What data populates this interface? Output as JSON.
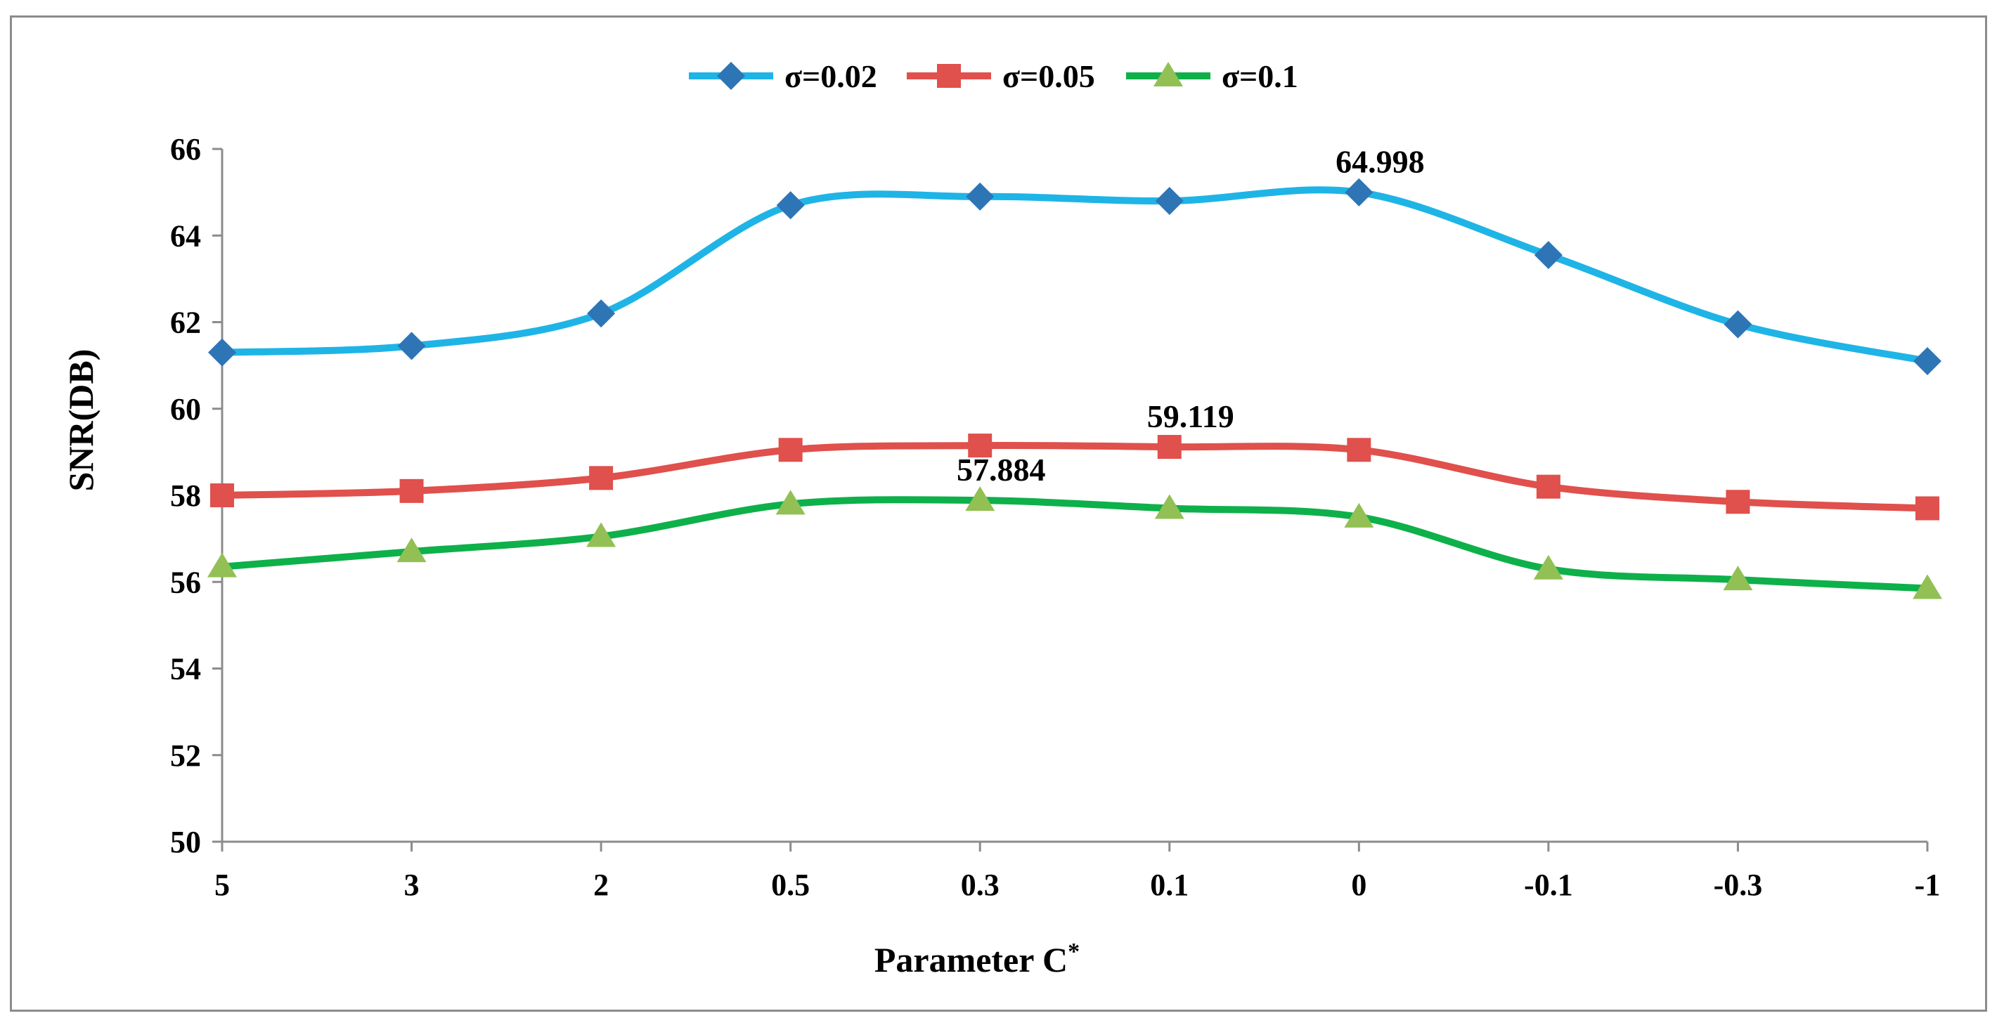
{
  "chart_data": {
    "type": "line",
    "title": "",
    "xlabel": "Parameter  C",
    "xlabel_superscript": "*",
    "ylabel": "SNR(DB)",
    "categories": [
      "5",
      "3",
      "2",
      "0.5",
      "0.3",
      "0.1",
      "0",
      "-0.1",
      "-0.3",
      "-1"
    ],
    "ylim": [
      50,
      66
    ],
    "yticks": [
      "50",
      "52",
      "54",
      "56",
      "58",
      "60",
      "62",
      "64",
      "66"
    ],
    "series": [
      {
        "name": "σ=0.02",
        "color": "#1fb4e6",
        "marker_color": "#2e75b6",
        "marker": "diamond",
        "values": [
          61.3,
          61.45,
          62.2,
          64.7,
          64.9,
          64.8,
          64.998,
          63.55,
          61.95,
          61.1
        ]
      },
      {
        "name": "σ=0.05",
        "color": "#e0504c",
        "marker_color": "#e0504c",
        "marker": "square",
        "values": [
          58.0,
          58.1,
          58.4,
          59.05,
          59.15,
          59.119,
          59.05,
          58.2,
          57.85,
          57.7
        ]
      },
      {
        "name": "σ=0.1",
        "color": "#0eb04a",
        "marker_color": "#92c054",
        "marker": "triangle",
        "values": [
          56.35,
          56.7,
          57.05,
          57.8,
          57.884,
          57.7,
          57.5,
          56.3,
          56.05,
          55.85
        ]
      }
    ],
    "annotations": [
      {
        "text": "64.998",
        "series": 0,
        "index": 6
      },
      {
        "text": "59.119",
        "series": 1,
        "index": 5
      },
      {
        "text": "57.884",
        "series": 2,
        "index": 4
      }
    ],
    "legend_position": "top-center",
    "grid": false
  }
}
